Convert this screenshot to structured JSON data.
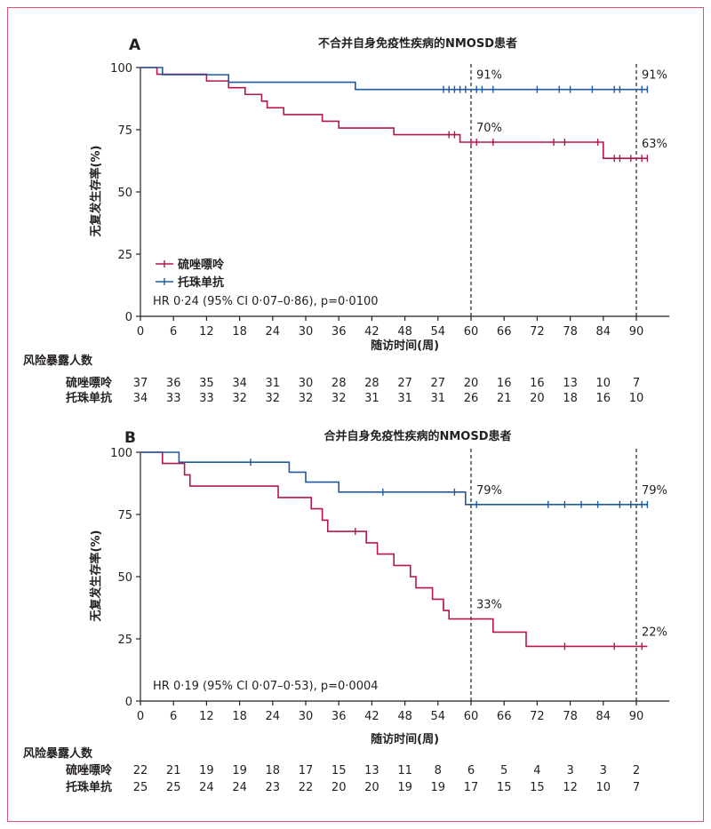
{
  "chart_data": [
    {
      "type": "line",
      "panel_label": "A",
      "title": "不合并自身免疫性疾病的NMOSD患者",
      "xlabel": "随访时间(周)",
      "ylabel": "无复发生存率(%)",
      "xlim": [
        0,
        96
      ],
      "ylim": [
        0,
        100
      ],
      "xticks": [
        0,
        6,
        12,
        18,
        24,
        30,
        36,
        42,
        48,
        54,
        60,
        66,
        72,
        78,
        84,
        90
      ],
      "yticks": [
        0,
        25,
        50,
        75,
        100
      ],
      "reference_lines_x": [
        60,
        90
      ],
      "stat_text": "HR 0·24 (95% CI 0·07–0·86), p=0·0100",
      "legend": {
        "position": "lower-left"
      },
      "series": [
        {
          "name": "硫唑嘌呤",
          "color": "#b5174b",
          "steps": [
            [
              0,
              100
            ],
            [
              3,
              97.3
            ],
            [
              12,
              94.6
            ],
            [
              16,
              91.9
            ],
            [
              19,
              89.2
            ],
            [
              22,
              86.5
            ],
            [
              23,
              83.8
            ],
            [
              26,
              81.1
            ],
            [
              33,
              78.4
            ],
            [
              36,
              75.7
            ],
            [
              46,
              73.0
            ],
            [
              58,
              70.0
            ],
            [
              84,
              63.5
            ],
            [
              92,
              63.5
            ]
          ],
          "censored": [
            [
              56,
              73
            ],
            [
              57,
              73
            ],
            [
              60,
              70
            ],
            [
              61,
              70
            ],
            [
              64,
              70
            ],
            [
              75,
              70
            ],
            [
              77,
              70
            ],
            [
              83,
              70
            ],
            [
              86,
              63.5
            ],
            [
              87,
              63.5
            ],
            [
              89,
              63.5
            ],
            [
              91,
              63.5
            ],
            [
              92,
              63.5
            ]
          ]
        },
        {
          "name": "托珠单抗",
          "color": "#1f5aa0",
          "steps": [
            [
              0,
              100
            ],
            [
              4,
              97.1
            ],
            [
              16,
              94.1
            ],
            [
              39,
              91.2
            ],
            [
              92,
              91.2
            ]
          ],
          "censored": [
            [
              55,
              91.2
            ],
            [
              56,
              91.2
            ],
            [
              57,
              91.2
            ],
            [
              58,
              91.2
            ],
            [
              59,
              91.2
            ],
            [
              61,
              91.2
            ],
            [
              62,
              91.2
            ],
            [
              64,
              91.2
            ],
            [
              72,
              91.2
            ],
            [
              76,
              91.2
            ],
            [
              78,
              91.2
            ],
            [
              82,
              91.2
            ],
            [
              86,
              91.2
            ],
            [
              87,
              91.2
            ],
            [
              91,
              91.2
            ],
            [
              92,
              91.2
            ]
          ]
        }
      ],
      "annotations": [
        {
          "x": 60,
          "series": 1,
          "text": "91%"
        },
        {
          "x": 90,
          "series": 1,
          "text": "91%"
        },
        {
          "x": 60,
          "series": 0,
          "text": "70%"
        },
        {
          "x": 90,
          "series": 0,
          "text": "63%"
        }
      ],
      "risk_table": {
        "header": "风险暴露人数",
        "rows": [
          {
            "label": "硫唑嘌呤",
            "values": [
              "37",
              "36",
              "35",
              "34",
              "31",
              "30",
              "28",
              "28",
              "27",
              "27",
              "20",
              "16",
              "16",
              "13",
              "10",
              "7"
            ]
          },
          {
            "label": "托珠单抗",
            "values": [
              "34",
              "33",
              "33",
              "32",
              "32",
              "32",
              "32",
              "31",
              "31",
              "31",
              "26",
              "21",
              "20",
              "18",
              "16",
              "10"
            ]
          }
        ]
      }
    },
    {
      "type": "line",
      "panel_label": "B",
      "title": "合并自身免疫性疾病的NMOSD患者",
      "xlabel": "随访时间(周)",
      "ylabel": "无复发生存率(%)",
      "xlim": [
        0,
        96
      ],
      "ylim": [
        0,
        100
      ],
      "xticks": [
        0,
        6,
        12,
        18,
        24,
        30,
        36,
        42,
        48,
        54,
        60,
        66,
        72,
        78,
        84,
        90
      ],
      "yticks": [
        0,
        25,
        50,
        75,
        100
      ],
      "reference_lines_x": [
        60,
        90
      ],
      "stat_text": "HR 0·19 (95% CI 0·07–0·53), p=0·0004",
      "series": [
        {
          "name": "硫唑嘌呤",
          "color": "#b5174b",
          "steps": [
            [
              0,
              100
            ],
            [
              4,
              95.5
            ],
            [
              8,
              90.9
            ],
            [
              9,
              86.4
            ],
            [
              25,
              81.8
            ],
            [
              31,
              77.3
            ],
            [
              33,
              72.7
            ],
            [
              34,
              68.2
            ],
            [
              41,
              63.6
            ],
            [
              43,
              59.1
            ],
            [
              46,
              54.5
            ],
            [
              49,
              50.0
            ],
            [
              50,
              45.5
            ],
            [
              53,
              40.9
            ],
            [
              55,
              36.4
            ],
            [
              56,
              33.0
            ],
            [
              64,
              27.7
            ],
            [
              70,
              22.0
            ],
            [
              92,
              22.0
            ]
          ],
          "censored": [
            [
              39,
              68.2
            ],
            [
              55,
              38.5
            ],
            [
              77,
              22.0
            ],
            [
              86,
              22.0
            ],
            [
              91,
              22.0
            ]
          ]
        },
        {
          "name": "托珠单抗",
          "color": "#1f5aa0",
          "steps": [
            [
              0,
              100
            ],
            [
              7,
              96.0
            ],
            [
              27,
              92.0
            ],
            [
              30,
              88.0
            ],
            [
              36,
              84.0
            ],
            [
              59,
              79.0
            ],
            [
              92,
              79.0
            ]
          ],
          "censored": [
            [
              20,
              96.0
            ],
            [
              44,
              84.0
            ],
            [
              57,
              84.0
            ],
            [
              61,
              79.0
            ],
            [
              74,
              79.0
            ],
            [
              77,
              79.0
            ],
            [
              80,
              79.0
            ],
            [
              83,
              79.0
            ],
            [
              87,
              79.0
            ],
            [
              89,
              79.0
            ],
            [
              91,
              79.0
            ],
            [
              92,
              79.0
            ]
          ]
        }
      ],
      "annotations": [
        {
          "x": 60,
          "series": 1,
          "text": "79%"
        },
        {
          "x": 90,
          "series": 1,
          "text": "79%"
        },
        {
          "x": 60,
          "series": 0,
          "text": "33%"
        },
        {
          "x": 90,
          "series": 0,
          "text": "22%"
        }
      ],
      "risk_table": {
        "header": "风险暴露人数",
        "rows": [
          {
            "label": "硫唑嘌呤",
            "values": [
              "22",
              "21",
              "19",
              "19",
              "18",
              "17",
              "15",
              "13",
              "11",
              "8",
              "6",
              "5",
              "4",
              "3",
              "3",
              "2"
            ]
          },
          {
            "label": "托珠单抗",
            "values": [
              "25",
              "25",
              "24",
              "24",
              "23",
              "22",
              "20",
              "20",
              "19",
              "19",
              "17",
              "15",
              "15",
              "12",
              "10",
              "7"
            ]
          }
        ]
      }
    }
  ]
}
